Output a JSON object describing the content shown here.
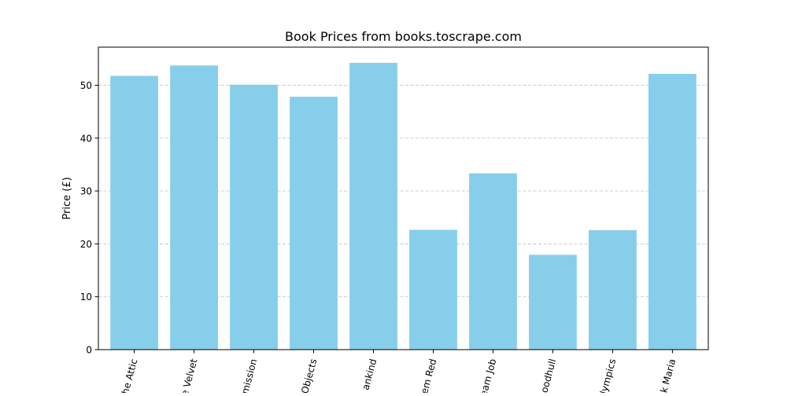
{
  "chart_data": {
    "type": "bar",
    "title": "Book Prices from books.toscrape.com",
    "xlabel": "",
    "ylabel": "Price (£)",
    "ylim": [
      0,
      57.2
    ],
    "yticks": [
      0,
      10,
      20,
      30,
      40,
      50
    ],
    "grid": "y-dashed",
    "bar_color": "#87ceeb",
    "grid_color": "#c8c8c8",
    "categories": [
      "he Attic",
      "e Velvet",
      "mission",
      "Objects",
      "ankind",
      "em Red",
      "eam Job",
      "oodhull",
      "lympics",
      "k Maria"
    ],
    "values": [
      51.77,
      53.74,
      50.1,
      47.82,
      54.23,
      22.65,
      33.34,
      17.93,
      22.6,
      52.15
    ]
  }
}
